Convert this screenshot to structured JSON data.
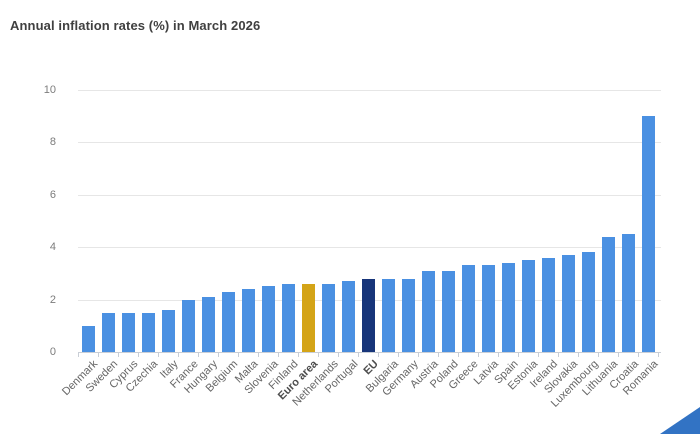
{
  "title": "Annual inflation rates (%) in March 2026",
  "colors": {
    "bar_default": "#4a90e2",
    "bar_euro_area": "#d4a417",
    "bar_eu": "#17357a",
    "gridline": "#e6e6e6",
    "axis_line": "#c9ced6",
    "corner_decoration": "#3273c4"
  },
  "chart_data": {
    "type": "bar",
    "title": "Annual inflation rates (%) in March 2026",
    "xlabel": "",
    "ylabel": "",
    "ylim": [
      0,
      10
    ],
    "yticks": [
      0,
      2,
      4,
      6,
      8,
      10
    ],
    "grid": "horizontal",
    "legend": "none",
    "categories": [
      "Denmark",
      "Sweden",
      "Cyprus",
      "Czechia",
      "Italy",
      "France",
      "Hungary",
      "Belgium",
      "Malta",
      "Slovenia",
      "Finland",
      "Euro area",
      "Netherlands",
      "Portugal",
      "EU",
      "Bulgaria",
      "Germany",
      "Austria",
      "Poland",
      "Greece",
      "Latvia",
      "Spain",
      "Estonia",
      "Ireland",
      "Slovakia",
      "Luxembourg",
      "Lithuania",
      "Croatia",
      "Romania"
    ],
    "values": [
      1.0,
      1.5,
      1.5,
      1.5,
      1.6,
      2.0,
      2.1,
      2.3,
      2.4,
      2.5,
      2.6,
      2.6,
      2.6,
      2.7,
      2.8,
      2.8,
      2.8,
      3.1,
      3.1,
      3.3,
      3.3,
      3.4,
      3.5,
      3.6,
      3.7,
      3.8,
      4.4,
      4.5,
      9.0
    ],
    "highlighted_categories": {
      "Euro area": "bar_euro_area",
      "EU": "bar_eu"
    },
    "bold_labels": [
      "Euro area",
      "EU"
    ]
  }
}
